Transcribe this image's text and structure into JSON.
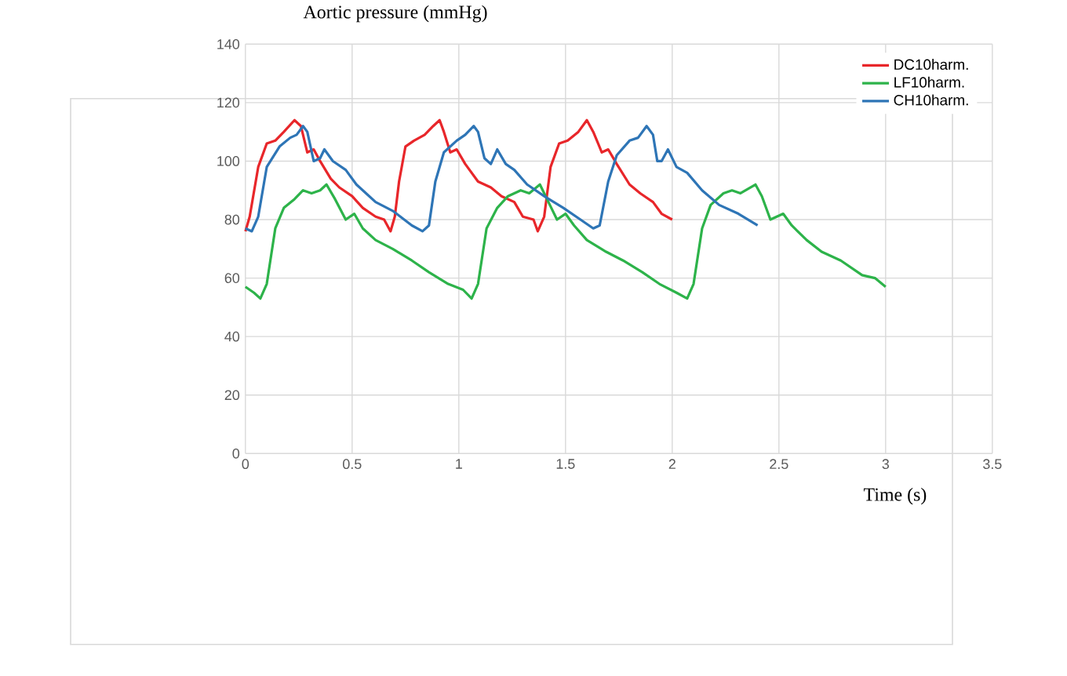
{
  "chart_data": {
    "type": "line",
    "xlabel": "Time (s)",
    "ylabel": "Aortic pressure (mmHg)",
    "xlim": [
      0,
      3.5
    ],
    "xticks": [
      0,
      0.5,
      1,
      1.5,
      2,
      2.5,
      3,
      3.5
    ],
    "ylim": [
      0,
      140
    ],
    "yticks": [
      0,
      20,
      40,
      60,
      80,
      100,
      120,
      140
    ],
    "grid": true,
    "legend": "top right",
    "marker": "none",
    "line_style": "solid",
    "series": [
      {
        "name": "DC10harm.",
        "color": "#e8262a",
        "x": [
          0,
          0.02,
          0.06,
          0.1,
          0.14,
          0.18,
          0.23,
          0.26,
          0.29,
          0.32,
          0.35,
          0.4,
          0.44,
          0.5,
          0.55,
          0.61,
          0.65,
          0.68,
          0.7,
          0.72,
          0.75,
          0.79,
          0.84,
          0.88,
          0.91,
          0.93,
          0.96,
          0.99,
          1.03,
          1.09,
          1.15,
          1.2,
          1.26,
          1.3,
          1.35,
          1.37,
          1.4,
          1.43,
          1.47,
          1.51,
          1.56,
          1.6,
          1.63,
          1.67,
          1.7,
          1.74,
          1.8,
          1.85,
          1.91,
          1.95,
          2.0
        ],
        "values": [
          76,
          81,
          98,
          106,
          107,
          110,
          114,
          112,
          103,
          104,
          100,
          94,
          91,
          88,
          84,
          81,
          80,
          76,
          81,
          93,
          105,
          107,
          109,
          112,
          114,
          110,
          103,
          104,
          99,
          93,
          91,
          88,
          86,
          81,
          80,
          76,
          81,
          98,
          106,
          107,
          110,
          114,
          110,
          103,
          104,
          99,
          92,
          89,
          86,
          82,
          80
        ]
      },
      {
        "name": "LF10harm.",
        "color": "#2db34a",
        "x": [
          0,
          0.04,
          0.07,
          0.1,
          0.14,
          0.18,
          0.23,
          0.27,
          0.31,
          0.35,
          0.38,
          0.42,
          0.47,
          0.51,
          0.55,
          0.61,
          0.69,
          0.78,
          0.86,
          0.95,
          1.02,
          1.06,
          1.09,
          1.13,
          1.18,
          1.23,
          1.29,
          1.33,
          1.38,
          1.42,
          1.46,
          1.5,
          1.54,
          1.6,
          1.69,
          1.77,
          1.86,
          1.94,
          2.02,
          2.07,
          2.1,
          2.14,
          2.18,
          2.24,
          2.28,
          2.32,
          2.39,
          2.42,
          2.46,
          2.52,
          2.56,
          2.63,
          2.7,
          2.79,
          2.89,
          2.95,
          3.0
        ],
        "values": [
          57,
          55,
          53,
          58,
          77,
          84,
          87,
          90,
          89,
          90,
          92,
          87,
          80,
          82,
          77,
          73,
          70,
          66,
          62,
          58,
          56,
          53,
          58,
          77,
          84,
          88,
          90,
          89,
          92,
          86,
          80,
          82,
          78,
          73,
          69,
          66,
          62,
          58,
          55,
          53,
          58,
          77,
          85,
          89,
          90,
          89,
          92,
          88,
          80,
          82,
          78,
          73,
          69,
          66,
          61,
          60,
          57
        ]
      },
      {
        "name": "CH10harm.",
        "color": "#2e75b6",
        "x": [
          0,
          0.03,
          0.06,
          0.1,
          0.16,
          0.21,
          0.24,
          0.27,
          0.29,
          0.32,
          0.35,
          0.37,
          0.41,
          0.47,
          0.52,
          0.61,
          0.69,
          0.78,
          0.83,
          0.86,
          0.89,
          0.93,
          0.99,
          1.03,
          1.07,
          1.09,
          1.12,
          1.15,
          1.18,
          1.22,
          1.26,
          1.32,
          1.4,
          1.49,
          1.57,
          1.63,
          1.66,
          1.7,
          1.74,
          1.8,
          1.84,
          1.88,
          1.91,
          1.93,
          1.95,
          1.98,
          2.02,
          2.07,
          2.14,
          2.22,
          2.31,
          2.4
        ],
        "values": [
          77,
          76,
          81,
          98,
          105,
          108,
          109,
          112,
          110,
          100,
          101,
          104,
          100,
          97,
          92,
          86,
          83,
          78,
          76,
          78,
          93,
          103,
          107,
          109,
          112,
          110,
          101,
          99,
          104,
          99,
          97,
          92,
          88,
          84,
          80,
          77,
          78,
          93,
          102,
          107,
          108,
          112,
          109,
          100,
          100,
          104,
          98,
          96,
          90,
          85,
          82,
          78
        ]
      }
    ]
  }
}
